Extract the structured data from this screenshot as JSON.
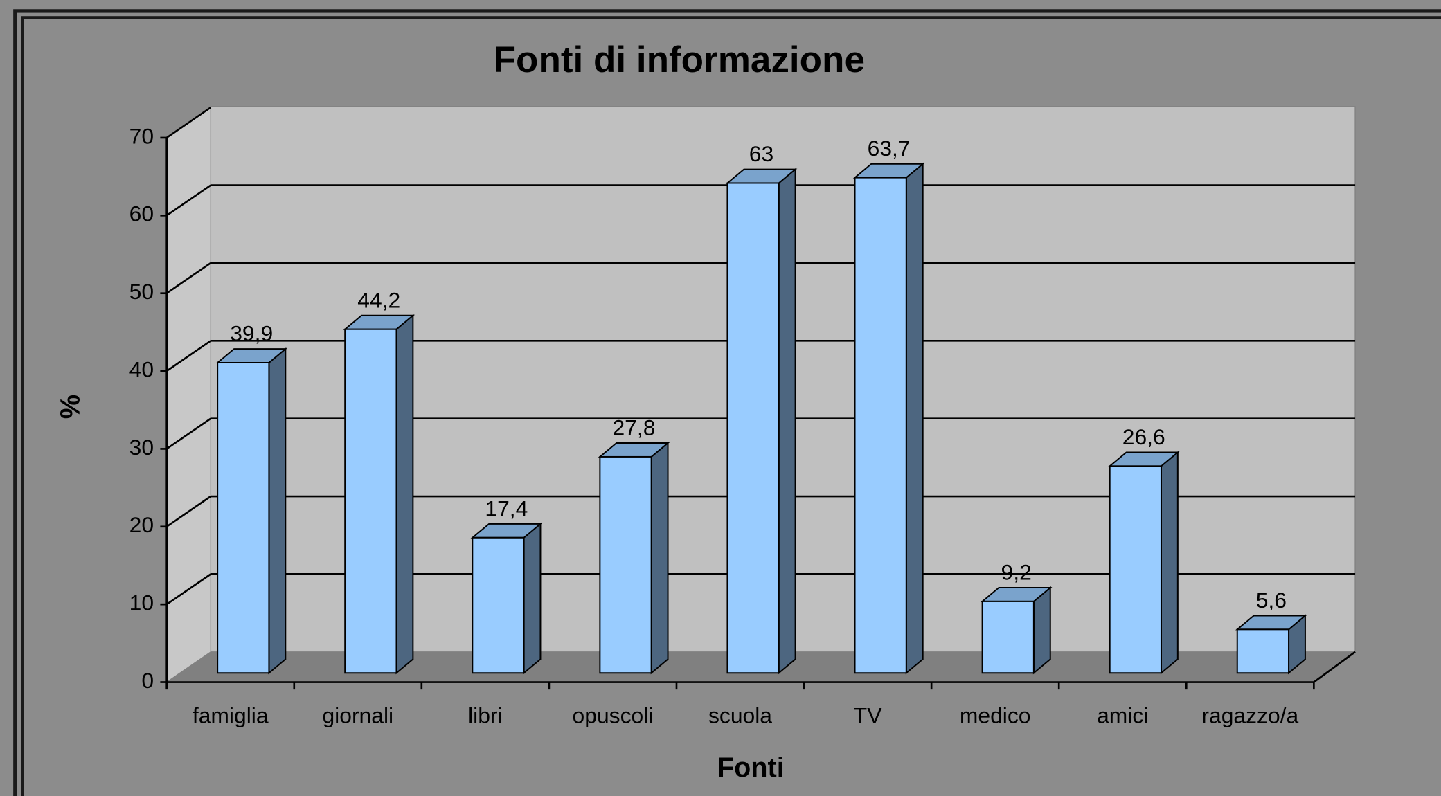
{
  "chart_data": {
    "type": "bar3d",
    "title": "Fonti di informazione",
    "x_label": "Fonti",
    "y_label": "%",
    "categories": [
      "famiglia",
      "giornali",
      "libri",
      "opuscoli",
      "scuola",
      "TV",
      "medico",
      "amici",
      "ragazzo/a"
    ],
    "values": [
      39.9,
      44.2,
      17.4,
      27.8,
      63,
      63.7,
      9.2,
      26.6,
      5.6
    ],
    "value_labels": [
      "39,9",
      "44,2",
      "17,4",
      "27,8",
      "63",
      "63,7",
      "9,2",
      "26,6",
      "5,6"
    ],
    "color": "#99ccff",
    "side_color": "#4d6680",
    "top_color": "#7aa3cc",
    "ylim": [
      0,
      70
    ],
    "yticks": [
      0,
      10,
      20,
      30,
      40,
      50,
      60,
      70
    ],
    "grid": true
  }
}
